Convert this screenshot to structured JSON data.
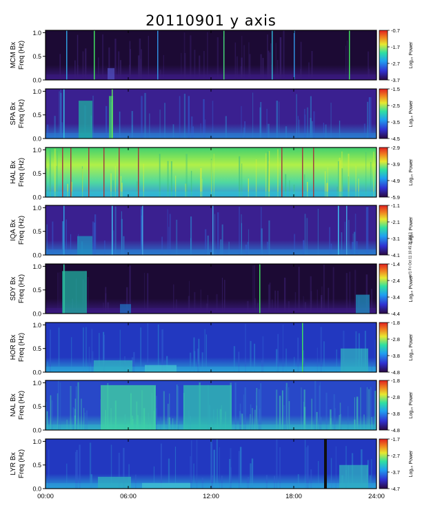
{
  "title": "20110901  y axis",
  "side_note": "scf1 Fri Oct 11 10:45:21 2013",
  "colorbar_label": "Log₁₀ Power",
  "freq_label": "Freq (Hz)",
  "colors": {
    "background_dark": "#1a0630",
    "background_blue": "#2030c8",
    "accent_green": "#40e050",
    "axis": "#000000"
  },
  "chart_data": {
    "type": "heatmap",
    "xlabel": "",
    "x_tick_labels": [
      "00:00",
      "06:00",
      "12:00",
      "18:00",
      "24:00"
    ],
    "x_ticks_hours": [
      0,
      6,
      12,
      18,
      24
    ],
    "xlim_hours": [
      0,
      24
    ],
    "ylim": [
      0,
      1.05
    ],
    "y_ticks": [
      "1.0",
      "0.5",
      "0.0"
    ],
    "panels": [
      {
        "station": "MCM Bx",
        "colorbar_ticks": [
          "-0.7",
          "-1.7",
          "-2.7",
          "-3.7"
        ],
        "style": "dark"
      },
      {
        "station": "SPA Bx",
        "colorbar_ticks": [
          "-1.5",
          "-2.5",
          "-3.5",
          "-4.5"
        ],
        "style": "purple"
      },
      {
        "station": "HAL Bx",
        "colorbar_ticks": [
          "-2.9",
          "-3.9",
          "-4.9",
          "-5.9"
        ],
        "style": "green"
      },
      {
        "station": "IQA Bx",
        "colorbar_ticks": [
          "-1.1",
          "-2.1",
          "-3.1",
          "-4.1"
        ],
        "style": "purple"
      },
      {
        "station": "SDY Bx",
        "colorbar_ticks": [
          "-1.4",
          "-2.4",
          "-3.4",
          "-4.4"
        ],
        "style": "dark"
      },
      {
        "station": "HOR Bx",
        "colorbar_ticks": [
          "-1.8",
          "-2.8",
          "-3.8",
          "-4.8"
        ],
        "style": "blue"
      },
      {
        "station": "NAL Bx",
        "colorbar_ticks": [
          "-1.8",
          "-2.8",
          "-3.8",
          "-4.8"
        ],
        "style": "bluegreen"
      },
      {
        "station": "LYR Bx",
        "colorbar_ticks": [
          "-1.7",
          "-2.7",
          "-3.7",
          "-4.7"
        ],
        "style": "blue"
      }
    ]
  }
}
